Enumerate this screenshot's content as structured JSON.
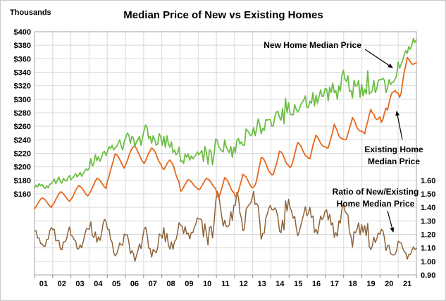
{
  "chart_data": {
    "type": "line",
    "title": "Median Price of New vs Existing Homes",
    "grid": true,
    "legend_position": "none (inline annotations with arrows)",
    "left_axis": {
      "label": "Thousands",
      "tick_labels": [
        "$400",
        "$380",
        "$360",
        "$340",
        "$320",
        "$300",
        "$280",
        "$260",
        "$240",
        "$220",
        "$200",
        "$180",
        "$160"
      ],
      "min": 40,
      "max": 400,
      "step": 20,
      "units": "USD thousands"
    },
    "right_axis": {
      "tick_labels": [
        "1.60",
        "1.50",
        "1.40",
        "1.30",
        "1.20",
        "1.10",
        "1.00",
        "0.90"
      ],
      "min": 0.9,
      "max": 1.6,
      "step": 0.1
    },
    "x_axis": {
      "year_labels": [
        "01",
        "02",
        "03",
        "04",
        "05",
        "06",
        "07",
        "08",
        "09",
        "10",
        "11",
        "12",
        "13",
        "14",
        "15",
        "16",
        "17",
        "18",
        "19",
        "20",
        "21"
      ],
      "points_per_year": 12,
      "frequency": "monthly"
    },
    "colors": {
      "new_home": "#6CBE45",
      "existing_home": "#E8671B",
      "ratio": "#8C6239",
      "gridline": "#D9D9D9",
      "plot_border": "#A6A6A6"
    },
    "annotations": {
      "new_home": {
        "text": "New Home Median Price"
      },
      "existing_home": {
        "line1": "Existing Home",
        "line2": "Median Price"
      },
      "ratio": {
        "line1": "Ratio of New/Existing",
        "line2": "Home Median Price"
      }
    },
    "series": [
      {
        "name": "New Home Median Price",
        "axis": "left",
        "color": "#6CBE45",
        "values": [
          169,
          173,
          170,
          175,
          172,
          174,
          170,
          168,
          172,
          169,
          174,
          175,
          178,
          182,
          175,
          180,
          185,
          178,
          176,
          183,
          180,
          179,
          184,
          187,
          181,
          184,
          186,
          190,
          185,
          188,
          192,
          186,
          190,
          194,
          197,
          195,
          198,
          212,
          201,
          205,
          218,
          209,
          215,
          208,
          213,
          221,
          223,
          217,
          223,
          230,
          227,
          232,
          225,
          228,
          230,
          235,
          240,
          231,
          225,
          238,
          244,
          250,
          247,
          235,
          245,
          243,
          230,
          237,
          240,
          245,
          232,
          244,
          254,
          262,
          258,
          242,
          245,
          235,
          246,
          240,
          232,
          234,
          249,
          244,
          232,
          245,
          229,
          246,
          234,
          229,
          237,
          221,
          225,
          218,
          220,
          229,
          208,
          209,
          205,
          219,
          214,
          219,
          210,
          216,
          212,
          215,
          217,
          222,
          218,
          221,
          224,
          208,
          230,
          221,
          204,
          225,
          223,
          203,
          218,
          241,
          240,
          230,
          227,
          224,
          222,
          240,
          229,
          225,
          221,
          230,
          214,
          229,
          221,
          239,
          242,
          234,
          237,
          232,
          232,
          256,
          254,
          250,
          246,
          248,
          258,
          246,
          257,
          271,
          263,
          249,
          257,
          254,
          270,
          269,
          270,
          270,
          260,
          261,
          275,
          281,
          282,
          273,
          269,
          286,
          264,
          301,
          280,
          295,
          278,
          277,
          277,
          292,
          285,
          281,
          285,
          292,
          296,
          299,
          305,
          288,
          288,
          297,
          294,
          310,
          290,
          306,
          294,
          304,
          314,
          304,
          305,
          316,
          315,
          298,
          318,
          310,
          324,
          310,
          313,
          300,
          320,
          312,
          335,
          343,
          330,
          326,
          335,
          312,
          313,
          302,
          328,
          320,
          320,
          328,
          303,
          322,
          305,
          315,
          308,
          342,
          308,
          310,
          312,
          328,
          310,
          316,
          328,
          329,
          329,
          331,
          328,
          310,
          317,
          329,
          322,
          325,
          326,
          330,
          335,
          355,
          346,
          352,
          358,
          366,
          372,
          368,
          378,
          374,
          380,
          390,
          384,
          388
        ]
      },
      {
        "name": "Existing Home Median Price",
        "axis": "left",
        "color": "#E8671B",
        "values": [
          138,
          141,
          145,
          149,
          152,
          154,
          153,
          151,
          148,
          145,
          142,
          140,
          144,
          147,
          152,
          156,
          160,
          163,
          162,
          160,
          157,
          154,
          151,
          149,
          152,
          155,
          160,
          165,
          169,
          172,
          171,
          169,
          166,
          162,
          159,
          157,
          160,
          164,
          169,
          174,
          179,
          183,
          182,
          180,
          177,
          173,
          170,
          168,
          180,
          186,
          195,
          203,
          211,
          219,
          218,
          215,
          211,
          206,
          201,
          198,
          204,
          209,
          216,
          222,
          227,
          230,
          230,
          227,
          222,
          217,
          212,
          208,
          205,
          209,
          215,
          220,
          224,
          228,
          226,
          223,
          218,
          212,
          207,
          204,
          198,
          196,
          200,
          204,
          208,
          210,
          207,
          203,
          196,
          188,
          182,
          178,
          164,
          166,
          170,
          174,
          178,
          181,
          180,
          178,
          175,
          172,
          170,
          168,
          166,
          168,
          172,
          176,
          180,
          183,
          182,
          180,
          177,
          173,
          170,
          168,
          158,
          154,
          160,
          168,
          176,
          184,
          182,
          179,
          174,
          168,
          164,
          162,
          156,
          158,
          164,
          172,
          180,
          189,
          187,
          185,
          181,
          176,
          172,
          169,
          170,
          173,
          180,
          192,
          203,
          214,
          213,
          210,
          205,
          199,
          194,
          191,
          188,
          189,
          197,
          204,
          213,
          223,
          222,
          219,
          214,
          208,
          204,
          202,
          199,
          202,
          210,
          219,
          228,
          236,
          234,
          231,
          226,
          221,
          217,
          215,
          213,
          212,
          222,
          232,
          239,
          247,
          244,
          240,
          235,
          232,
          230,
          230,
          228,
          228,
          236,
          244,
          252,
          263,
          258,
          253,
          246,
          243,
          242,
          241,
          240,
          241,
          249,
          257,
          264,
          273,
          269,
          264,
          258,
          255,
          253,
          253,
          251,
          249,
          259,
          267,
          277,
          285,
          280,
          278,
          272,
          270,
          271,
          274,
          266,
          270,
          280,
          287,
          284,
          294,
          304,
          310,
          311,
          313,
          310,
          309,
          303,
          310,
          326,
          341,
          350,
          362,
          359,
          356,
          352,
          352,
          353,
          354
        ]
      },
      {
        "name": "Ratio of New/Existing Home Median Price",
        "axis": "right",
        "color": "#8C6239",
        "derived_from": [
          "New Home Median Price",
          "Existing Home Median Price"
        ],
        "operation": "divide"
      }
    ]
  }
}
